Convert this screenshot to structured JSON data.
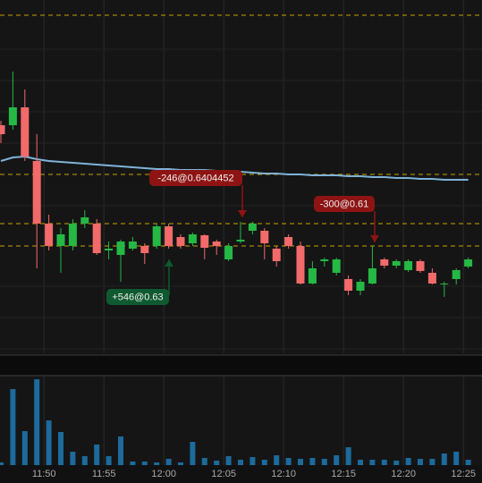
{
  "chart_data": {
    "type": "candlestick",
    "categories": [
      null,
      null,
      null,
      "11:50",
      null,
      null,
      null,
      null,
      "11:55",
      null,
      null,
      null,
      null,
      "12:00",
      null,
      null,
      null,
      null,
      "12:05",
      null,
      null,
      null,
      null,
      "12:10",
      null,
      null,
      null,
      null,
      "12:15",
      null,
      null,
      null,
      null,
      "12:20",
      null,
      null,
      null,
      null,
      "12:25",
      null
    ],
    "open": [
      0.74,
      0.74,
      0.76,
      0.7,
      0.63,
      0.605,
      0.605,
      0.63,
      0.63,
      0.6,
      0.595,
      0.602,
      0.605,
      0.605,
      0.627,
      0.615,
      0.608,
      0.617,
      0.61,
      0.59,
      0.61,
      0.622,
      0.622,
      0.602,
      0.615,
      0.605,
      0.563,
      0.588,
      0.575,
      0.568,
      0.555,
      0.563,
      0.59,
      0.583,
      0.578,
      0.588,
      0.575,
      0.562,
      0.568,
      0.582
    ],
    "high": [
      0.745,
      0.8,
      0.78,
      0.73,
      0.64,
      0.625,
      0.635,
      0.645,
      0.635,
      0.61,
      0.612,
      0.615,
      0.608,
      0.63,
      0.63,
      0.618,
      0.62,
      0.618,
      0.612,
      0.608,
      0.632,
      0.632,
      0.625,
      0.605,
      0.618,
      0.61,
      0.588,
      0.592,
      0.592,
      0.572,
      0.568,
      0.605,
      0.592,
      0.59,
      0.59,
      0.59,
      0.58,
      0.565,
      0.58,
      0.592
    ],
    "low": [
      0.72,
      0.735,
      0.7,
      0.58,
      0.6,
      0.575,
      0.6,
      0.625,
      0.595,
      0.59,
      0.565,
      0.6,
      0.585,
      0.602,
      0.602,
      0.602,
      0.605,
      0.59,
      0.595,
      0.588,
      0.608,
      0.618,
      0.59,
      0.582,
      0.602,
      0.562,
      0.562,
      0.582,
      0.572,
      0.55,
      0.55,
      0.562,
      0.58,
      0.58,
      0.576,
      0.575,
      0.562,
      0.548,
      0.562,
      0.58
    ],
    "close": [
      0.73,
      0.76,
      0.705,
      0.63,
      0.605,
      0.618,
      0.63,
      0.637,
      0.597,
      0.602,
      0.61,
      0.61,
      0.597,
      0.627,
      0.605,
      0.605,
      0.618,
      0.603,
      0.605,
      0.605,
      0.612,
      0.63,
      0.608,
      0.588,
      0.605,
      0.563,
      0.58,
      0.59,
      0.59,
      0.555,
      0.565,
      0.58,
      0.583,
      0.588,
      0.588,
      0.577,
      0.563,
      0.563,
      0.578,
      0.59
    ],
    "up_color": "#25b845",
    "down_color": "#f26a6a",
    "ylim": [
      0.485,
      0.88
    ],
    "ma": {
      "color": "#7fb3d9",
      "values": [
        0.7,
        0.704,
        0.705,
        0.702,
        0.7,
        0.699,
        0.698,
        0.697,
        0.696,
        0.695,
        0.694,
        0.693,
        0.692,
        0.691,
        0.691,
        0.69,
        0.69,
        0.69,
        0.689,
        0.688,
        0.688,
        0.687,
        0.686,
        0.686,
        0.685,
        0.685,
        0.684,
        0.684,
        0.684,
        0.683,
        0.683,
        0.682,
        0.682,
        0.681,
        0.681,
        0.68,
        0.68,
        0.679,
        0.679,
        0.679
      ]
    },
    "level_lines": {
      "color": "#c9a400",
      "values": [
        0.863,
        0.685,
        0.63,
        0.605
      ]
    },
    "volume": {
      "color": "#1d6a9c",
      "ylim": [
        0,
        100
      ],
      "values": [
        3,
        85,
        38,
        96,
        50,
        37,
        15,
        10,
        23,
        10,
        32,
        4,
        4,
        3,
        7,
        3,
        26,
        8,
        5,
        10,
        6,
        9,
        6,
        11,
        8,
        7,
        8,
        7,
        11,
        20,
        6,
        6,
        6,
        5,
        8,
        7,
        7,
        13,
        15,
        6
      ]
    },
    "annotations": [
      "-246@0.6404452",
      "-300@0.61",
      "+546@0.63"
    ],
    "grid": true
  }
}
